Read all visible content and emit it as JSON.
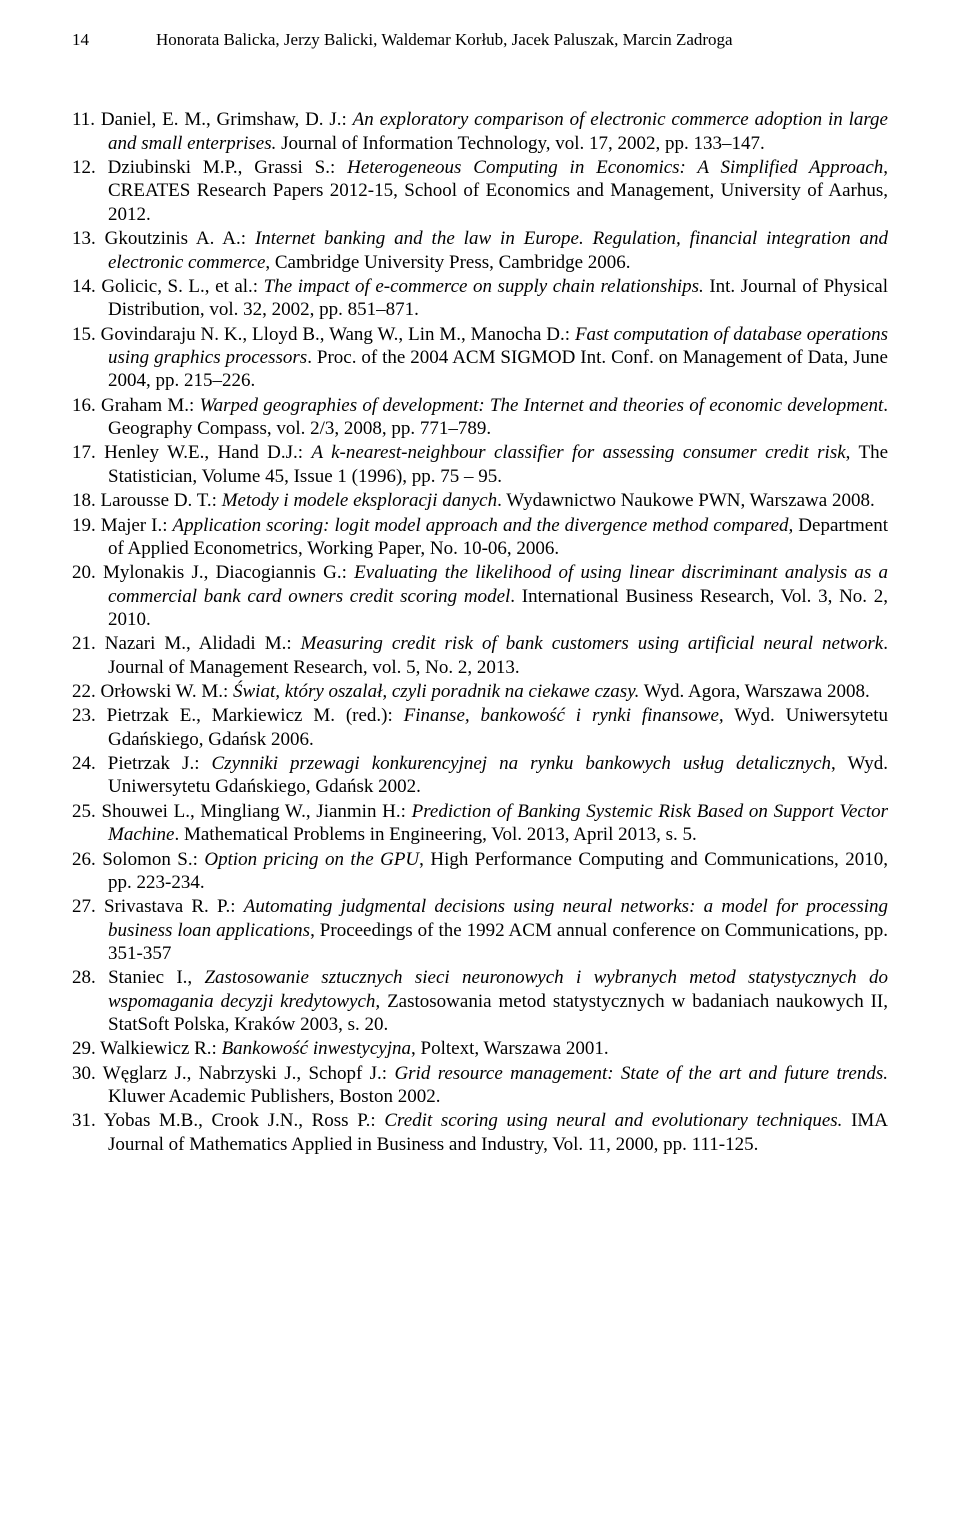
{
  "header": {
    "page_number": "14",
    "authors": "Honorata Balicka, Jerzy Balicki, Waldemar Korłub, Jacek Paluszak, Marcin Zadroga"
  },
  "references": [
    {
      "num": 11,
      "pre": "Daniel, E. M., Grimshaw, D. J.: ",
      "ital": "An exploratory comparison of electronic commerce adoption in large and small enterprises.",
      "post": " Journal of Information Technology, vol. 17, 2002, pp. 133–147."
    },
    {
      "num": 12,
      "pre": "Dziubinski M.P., Grassi S.: ",
      "ital": "Heterogeneous Computing in Economics: A Simplified Approach",
      "post": ", CREATES Research Papers 2012-15, School of Economics and Management, University of Aarhus, 2012."
    },
    {
      "num": 13,
      "pre": "Gkoutzinis A. A.: ",
      "ital": "Internet banking and the law in Europe. Regulation, financial integration and electronic commerce",
      "post": ", Cambridge University Press, Cambridge 2006."
    },
    {
      "num": 14,
      "pre": "Golicic, S. L., et al.: ",
      "ital": "The impact of e-commerce on supply chain relationships.",
      "post": " Int. Journal of Physical Distribution, vol. 32, 2002, pp. 851–871."
    },
    {
      "num": 15,
      "pre": "Govindaraju N. K., Lloyd B., Wang W., Lin M., Manocha D.: ",
      "ital": "Fast computation of database operations using graphics processors",
      "post": ". Proc. of the 2004 ACM SIGMOD Int. Conf. on Management of Data, June 2004, pp. 215–226."
    },
    {
      "num": 16,
      "pre": "Graham M.: ",
      "ital": "Warped geographies of development: The Internet and theories of economic development",
      "post": ". Geography Compass, vol. 2/3, 2008, pp. 771–789."
    },
    {
      "num": 17,
      "pre": "Henley W.E., Hand D.J.: ",
      "ital": "A k-nearest-neighbour classifier for assessing consumer credit risk",
      "post": ", The Statistician, Volume 45, Issue 1 (1996), pp. 75 – 95."
    },
    {
      "num": 18,
      "pre": "Larousse D. T.: ",
      "ital": "Metody i modele eksploracji danych",
      "post": ". Wydawnictwo Naukowe PWN, Warszawa 2008."
    },
    {
      "num": 19,
      "pre": "Majer I.: ",
      "ital": "Application scoring: logit model approach and the divergence method compared,",
      "post": " Department of Applied Econometrics, Working Paper, No. 10-06, 2006."
    },
    {
      "num": 20,
      "pre": "Mylonakis J., Diacogiannis G.: ",
      "ital": "Evaluating the likelihood of using linear discriminant analysis as a commercial bank card owners credit scoring model",
      "post": ". International Business Research, Vol. 3, No. 2, 2010."
    },
    {
      "num": 21,
      "pre": "Nazari M., Alidadi M.: ",
      "ital": "Measuring credit risk of bank customers using artificial neural network",
      "post": ". Journal of Management Research, vol. 5, No. 2, 2013."
    },
    {
      "num": 22,
      "pre": "Orłowski W. M.: ",
      "ital": "Świat, który oszalał, czyli poradnik na ciekawe czasy.",
      "post": " Wyd. Agora, Warszawa 2008."
    },
    {
      "num": 23,
      "pre": "Pietrzak E., Markiewicz M. (red.): ",
      "ital": "Finanse, bankowość i rynki finansowe,",
      "post": " Wyd. Uniwersytetu Gdańskiego, Gdańsk 2006."
    },
    {
      "num": 24,
      "pre": "Pietrzak J.: ",
      "ital": "Czynniki przewagi konkurencyjnej na rynku bankowych usług detalicznych",
      "post": ", Wyd. Uniwersytetu Gdańskiego, Gdańsk 2002."
    },
    {
      "num": 25,
      "pre": "Shouwei L., Mingliang W., Jianmin H.: ",
      "ital": "Prediction of Banking Systemic Risk Based on Support Vector Machine",
      "post": ". Mathematical Problems in Engineering, Vol. 2013, April 2013, s. 5."
    },
    {
      "num": 26,
      "pre": "Solomon S.: ",
      "ital": "Option pricing on the GPU",
      "post": ", High Performance Computing and Communications, 2010, pp. 223-234."
    },
    {
      "num": 27,
      "pre": "Srivastava R. P.: ",
      "ital": "Automating judgmental decisions using neural networks: a model for processing business loan applications",
      "post": ", Proceedings of the 1992 ACM annual conference on Communications, pp. 351-357"
    },
    {
      "num": 28,
      "pre": "Staniec I., ",
      "ital": "Zastosowanie sztucznych sieci neuronowych i wybranych metod statystycznych do wspomagania decyzji kredytowych,",
      "post": " Zastosowania metod statystycznych w badaniach naukowych II, StatSoft Polska, Kraków 2003, s. 20."
    },
    {
      "num": 29,
      "pre": "Walkiewicz R.: ",
      "ital": "Bankowość inwestycyjna",
      "post": ", Poltext, Warszawa 2001."
    },
    {
      "num": 30,
      "pre": "Węglarz J., Nabrzyski J., Schopf J.: ",
      "ital": "Grid resource management: State of the art and future trends.",
      "post": " Kluwer Academic Publishers, Boston 2002."
    },
    {
      "num": 31,
      "pre": "Yobas M.B., Crook J.N., Ross P.: ",
      "ital": "Credit scoring using neural and evolutionary techniques.",
      "post": " IMA Journal of Mathematics Applied in Business and Industry, Vol. 11, 2000, pp. 111-125."
    }
  ]
}
